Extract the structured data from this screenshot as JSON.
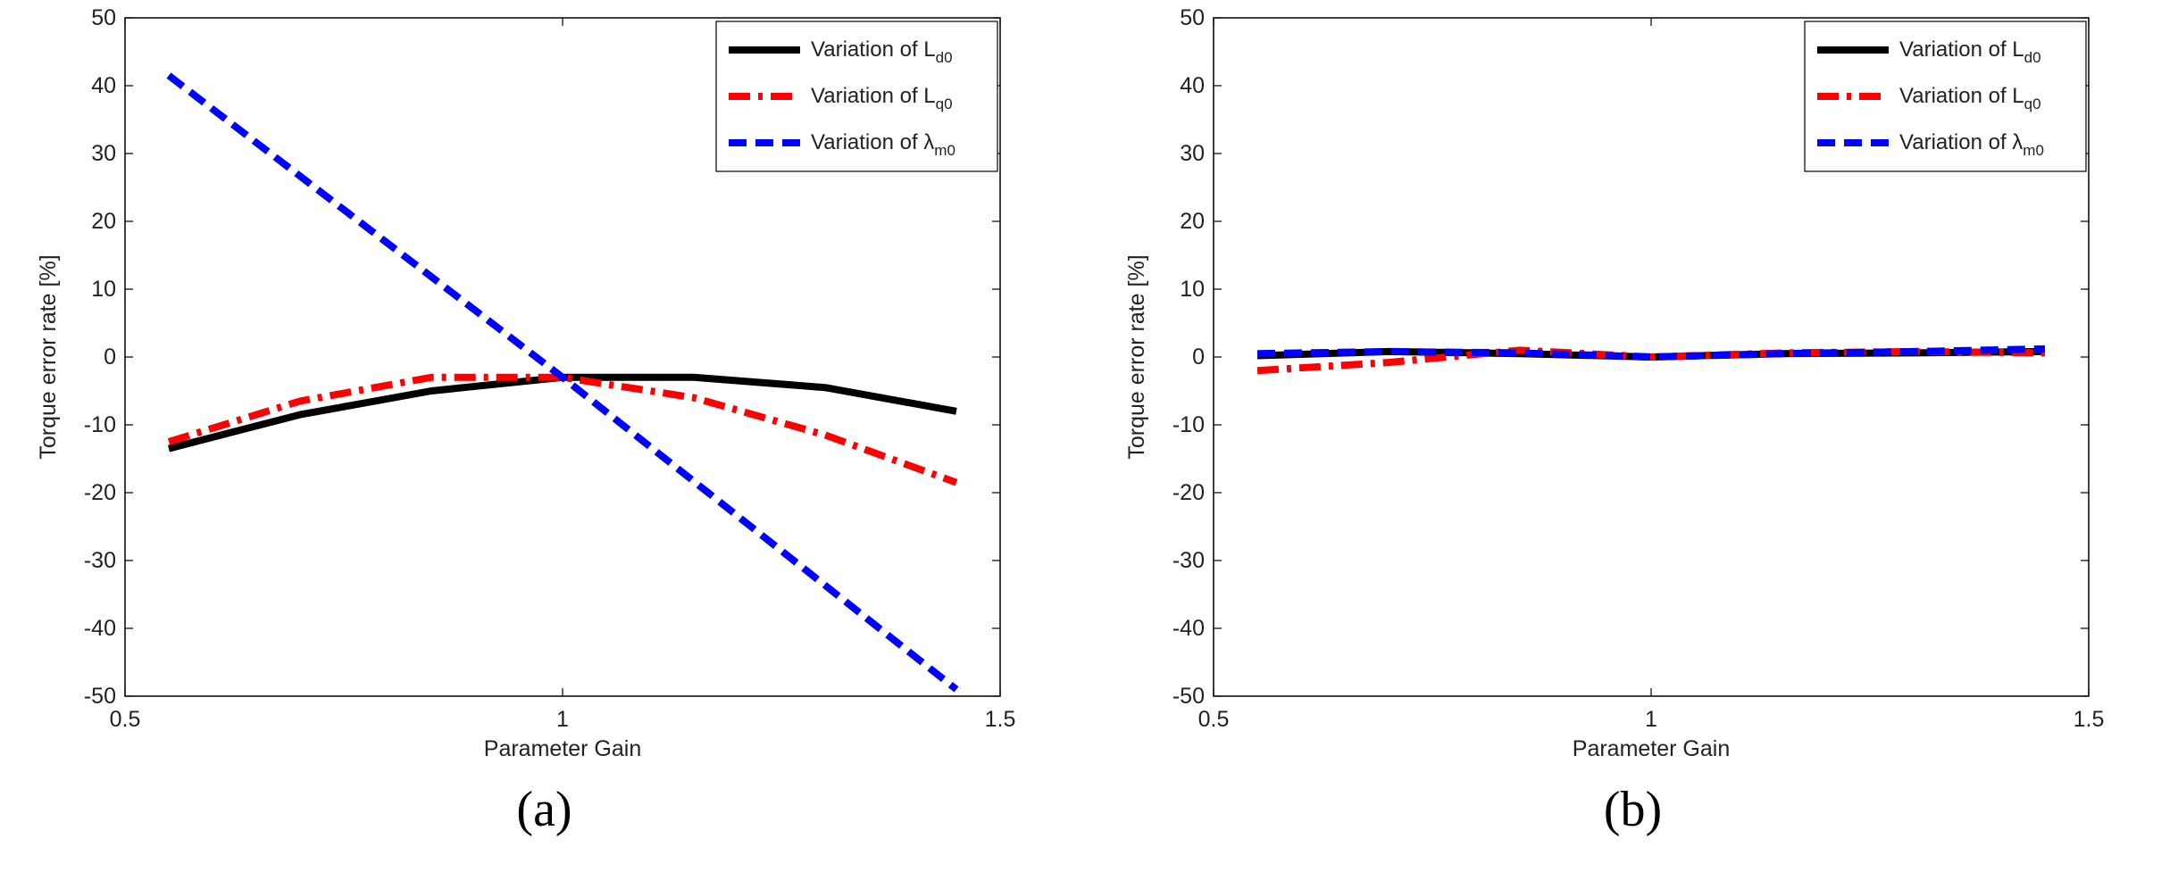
{
  "chart_data": [
    {
      "type": "line",
      "caption": "(a)",
      "xlabel": "Parameter Gain",
      "ylabel": "Torque error rate [%]",
      "xlim": [
        0.5,
        1.5
      ],
      "ylim": [
        -50,
        50
      ],
      "xticks": [
        0.5,
        1,
        1.5
      ],
      "yticks": [
        -50,
        -40,
        -30,
        -20,
        -10,
        0,
        10,
        20,
        30,
        40,
        50
      ],
      "legend_position": "top-right",
      "series": [
        {
          "name": "Variation of L_d0",
          "base": "Variation of L",
          "sub": "d0",
          "style": "solid",
          "color": "#000000",
          "x": [
            0.55,
            0.7,
            0.85,
            1.0,
            1.15,
            1.3,
            1.45
          ],
          "y": [
            -13.5,
            -8.5,
            -5,
            -3,
            -3,
            -4.5,
            -8
          ]
        },
        {
          "name": "Variation of L_q0",
          "base": "Variation of L",
          "sub": "q0",
          "style": "dashdot",
          "color": "#ff0000",
          "x": [
            0.55,
            0.7,
            0.85,
            1.0,
            1.15,
            1.3,
            1.45
          ],
          "y": [
            -12.5,
            -6.5,
            -3,
            -3,
            -6,
            -11.5,
            -18.5
          ]
        },
        {
          "name": "Variation of λ_m0",
          "base": "Variation of λ",
          "sub": "m0",
          "style": "dashed",
          "color": "#0000ff",
          "x": [
            0.55,
            1.0,
            1.45
          ],
          "y": [
            41.5,
            -3,
            -49
          ]
        }
      ]
    },
    {
      "type": "line",
      "caption": "(b)",
      "xlabel": "Parameter Gain",
      "ylabel": "Torque error rate [%]",
      "xlim": [
        0.5,
        1.5
      ],
      "ylim": [
        -50,
        50
      ],
      "xticks": [
        0.5,
        1,
        1.5
      ],
      "yticks": [
        -50,
        -40,
        -30,
        -20,
        -10,
        0,
        10,
        20,
        30,
        40,
        50
      ],
      "legend_position": "top-right",
      "series": [
        {
          "name": "Variation of L_d0",
          "base": "Variation of L",
          "sub": "d0",
          "style": "solid",
          "color": "#000000",
          "x": [
            0.55,
            0.7,
            0.85,
            1.0,
            1.15,
            1.3,
            1.45
          ],
          "y": [
            0.2,
            0.8,
            0.5,
            0,
            0.5,
            0.6,
            0.8
          ]
        },
        {
          "name": "Variation of L_q0",
          "base": "Variation of L",
          "sub": "q0",
          "style": "dashdot",
          "color": "#ff0000",
          "x": [
            0.55,
            0.7,
            0.85,
            1.0,
            1.15,
            1.3,
            1.45
          ],
          "y": [
            -2,
            -0.8,
            1,
            0,
            0.6,
            0.8,
            0.6
          ]
        },
        {
          "name": "Variation of λ_m0",
          "base": "Variation of λ",
          "sub": "m0",
          "style": "dashed",
          "color": "#0000ff",
          "x": [
            0.55,
            0.7,
            0.85,
            1.0,
            1.15,
            1.3,
            1.45
          ],
          "y": [
            0.5,
            0.8,
            0.6,
            0,
            0.5,
            0.8,
            1.2
          ]
        }
      ]
    }
  ]
}
